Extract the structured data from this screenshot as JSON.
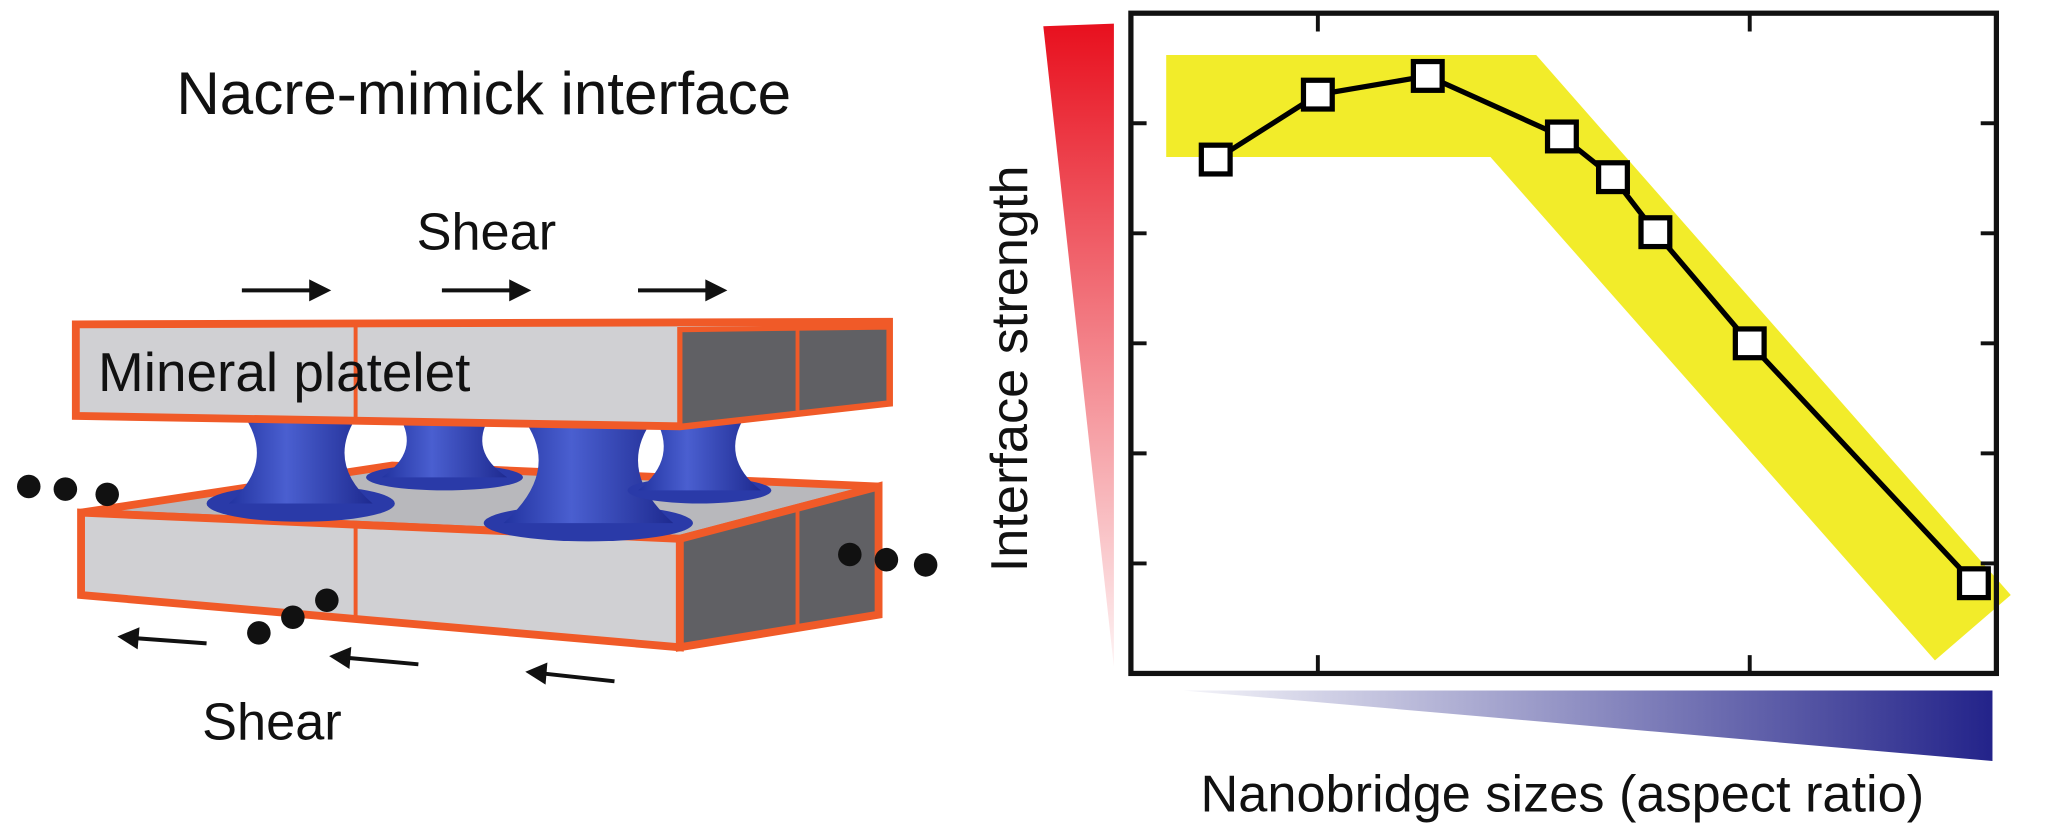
{
  "schematic": {
    "title": "Nacre-mimick interface",
    "shear_top": "Shear",
    "platelet_label": "Mineral platelet",
    "shear_bottom": "Shear"
  },
  "chart_data": {
    "type": "line",
    "y_label": "Interface strength",
    "x_label": "Nanobridge sizes (aspect ratio)",
    "x": [
      0.98,
      2.16,
      3.43,
      4.98,
      5.57,
      6.06,
      7.15,
      9.74
    ],
    "series": [
      {
        "color": "#000000",
        "values": [
          4.67,
          5.26,
          5.43,
          4.88,
          4.51,
          4.01,
          3.0,
          0.82
        ]
      }
    ],
    "xlim": [
      0,
      10
    ],
    "ylim": [
      0,
      6
    ],
    "xticks": [
      2.16,
      7.15
    ],
    "yticks": [
      1,
      2,
      3,
      4,
      5
    ]
  }
}
